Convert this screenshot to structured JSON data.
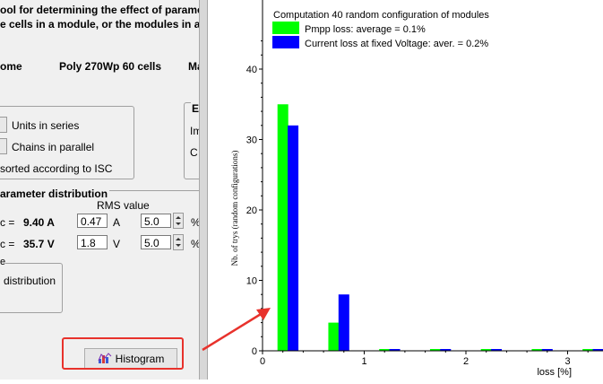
{
  "dialog": {
    "description_line1": "ool for determining the effect of parame",
    "description_line2": "e cells in a module,  or the modules in a",
    "module_manufacturer": "ome",
    "module_model": "Poly 270Wp 60 cells",
    "module_extra": "Ma",
    "units_in_series_label": "Units in series",
    "chains_in_parallel_label": "Chains in parallel",
    "sorted_label": "sorted according to ISC",
    "right_group_title": "E",
    "right_group_line1": "Im",
    "right_group_line2": "C",
    "param_section_title": "arameter distribution",
    "rms_header": "RMS value",
    "row1": {
      "label": "c =",
      "value": "9.40 A",
      "rms": "0.47",
      "unit": "A",
      "spin_value": "5.0",
      "pct": "%"
    },
    "row2": {
      "label": "c =",
      "value": "35.7 V",
      "rms": "1.8",
      "unit": "V",
      "spin_value": "5.0",
      "pct": "%"
    },
    "dist_group_caption": "e",
    "dist_label": "distribution",
    "histogram_button_label": "Histogram"
  },
  "chart_data": {
    "type": "bar",
    "title": "Computation 40 random configuration of modules",
    "xlabel": "loss [%]",
    "ylabel": "Nb. of trys (random configurations)",
    "xlim": [
      0,
      3.4
    ],
    "ylim": [
      0,
      44
    ],
    "xticks": [
      "0",
      "1",
      "2",
      "3"
    ],
    "yticks": [
      "0",
      "10",
      "20",
      "30",
      "40"
    ],
    "legend_placement": "top-left",
    "series": [
      {
        "name": "Pmpp loss: average = 0.1%",
        "color": "#00ff00",
        "x": [
          0.2,
          0.7,
          1.2,
          1.7,
          2.2,
          2.7,
          3.2
        ],
        "values": [
          35,
          4,
          0,
          0,
          0,
          0,
          0
        ]
      },
      {
        "name": "Current loss at fixed Voltage: aver. = 0.2%",
        "color": "#0000ff",
        "x": [
          0.3,
          0.8,
          1.3,
          1.8,
          2.3,
          2.8,
          3.3
        ],
        "values": [
          32,
          8,
          0,
          0,
          0,
          0,
          0
        ]
      }
    ]
  },
  "annotation": {
    "highlight_color": "#e8322c"
  }
}
